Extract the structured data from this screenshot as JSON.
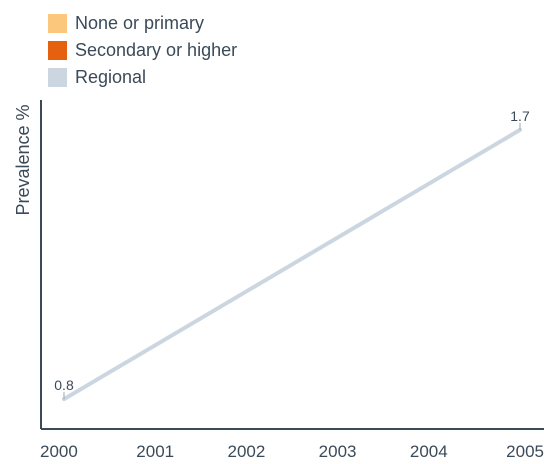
{
  "chart_data": {
    "type": "line",
    "title": "",
    "xlabel": "",
    "ylabel": "Prevalence %",
    "x": [
      "2000",
      "2001",
      "2002",
      "2003",
      "2004",
      "2005"
    ],
    "ylim": [
      0.7,
      1.8
    ],
    "grid": false,
    "legend_position": "top-left",
    "legend": [
      {
        "label": "None or primary",
        "color": "#fbc77d"
      },
      {
        "label": "Secondary or higher",
        "color": "#e5610f"
      },
      {
        "label": "Regional",
        "color": "#ccd6e0"
      }
    ],
    "series": [
      {
        "name": "Regional",
        "color": "#ccd6e0",
        "points": [
          {
            "x": "2000",
            "y": 0.8,
            "label": "0.8"
          },
          {
            "x": "2005",
            "y": 1.7,
            "label": "1.7"
          }
        ]
      }
    ]
  }
}
